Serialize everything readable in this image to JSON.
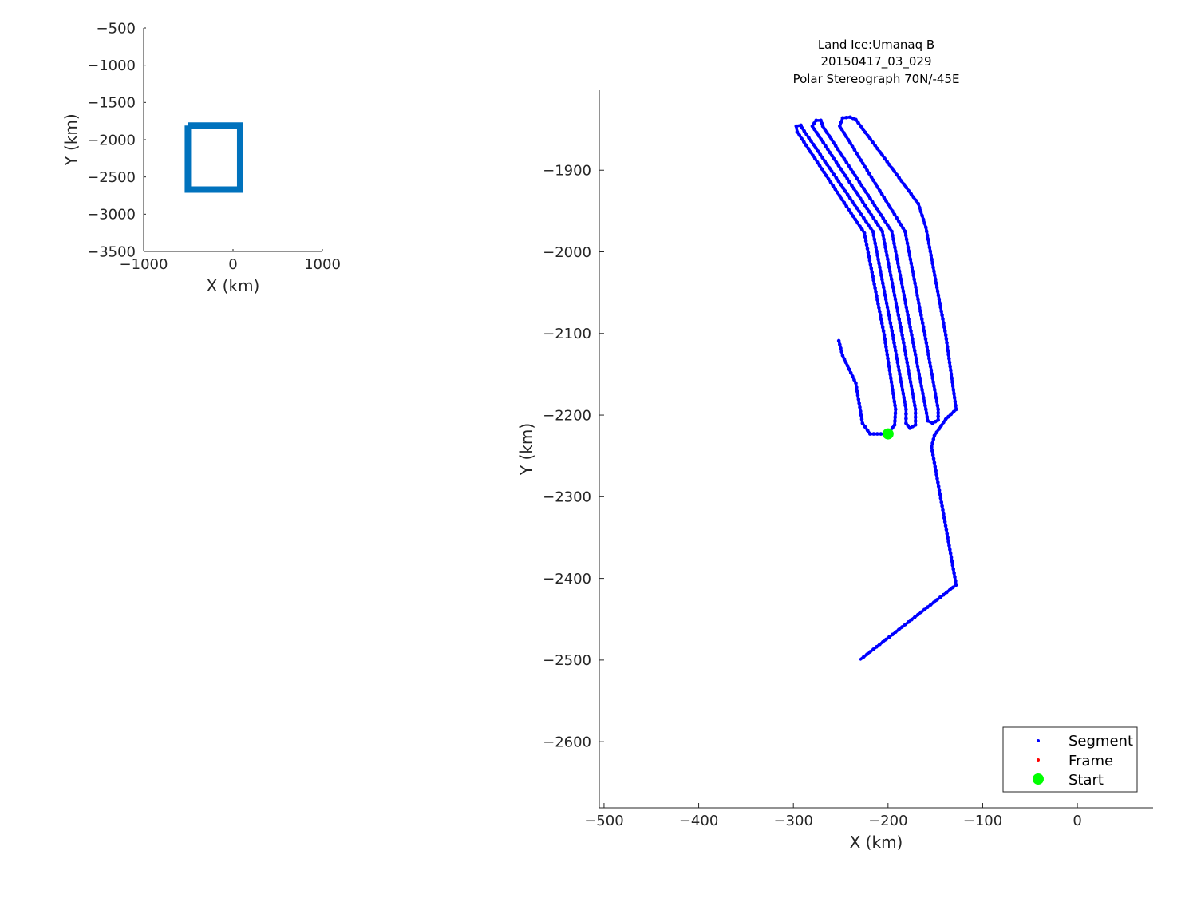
{
  "chart_data": [
    {
      "type": "line",
      "panel": "overview",
      "xlabel": "X (km)",
      "ylabel": "Y (km)",
      "xlim": [
        -1000,
        1000
      ],
      "ylim": [
        -3500,
        -500
      ],
      "xticks": [
        -1000,
        0,
        1000
      ],
      "yticks": [
        -3500,
        -3000,
        -2500,
        -2000,
        -1500,
        -1000,
        -500
      ],
      "grid": false,
      "color": "#0072BD",
      "series": [
        {
          "x": [
            -505,
            80,
            80,
            -505,
            -505
          ],
          "y": [
            -1810,
            -1810,
            -2670,
            -2670,
            -1810
          ]
        }
      ]
    },
    {
      "type": "scatter",
      "panel": "main",
      "title": [
        "Land Ice:Umanaq B",
        "20150417_03_029",
        "Polar Stereograph 70N/-45E"
      ],
      "xlabel": "X (km)",
      "ylabel": "Y (km)",
      "xlim": [
        -505,
        80
      ],
      "ylim": [
        -2681,
        -1802
      ],
      "xticks": [
        -500,
        -400,
        -300,
        -200,
        -100,
        0
      ],
      "yticks": [
        -2600,
        -2500,
        -2400,
        -2300,
        -2200,
        -2100,
        -2000,
        -1900
      ],
      "grid": false,
      "legend_position": "bottom-right",
      "series": [
        {
          "name": "Segment",
          "color": "#0000FF",
          "x": [
            -252,
            -248,
            -234,
            -227,
            -219,
            -200,
            -193,
            -192,
            -204,
            -225,
            -296,
            -297,
            -292,
            -291,
            -216,
            -195,
            -181,
            -181,
            -177,
            -171,
            -171,
            -185,
            -206,
            -280,
            -276,
            -271,
            -269,
            -196,
            -175,
            -160,
            -158,
            -153,
            -147,
            -147,
            -161,
            -182,
            -251,
            -248,
            -240,
            -234,
            -168,
            -160,
            -139,
            -128,
            -139,
            -151,
            -154,
            -128,
            -229
          ],
          "y": [
            -2109,
            -2127,
            -2161,
            -2210,
            -2223,
            -2223,
            -2212,
            -2193,
            -2102,
            -1977,
            -1853,
            -1846,
            -1845,
            -1848,
            -1975,
            -2102,
            -2193,
            -2210,
            -2216,
            -2212,
            -2193,
            -2102,
            -1975,
            -1846,
            -1839,
            -1839,
            -1846,
            -1975,
            -2102,
            -2193,
            -2207,
            -2210,
            -2206,
            -2193,
            -2102,
            -1975,
            -1846,
            -1836,
            -1835,
            -1838,
            -1941,
            -1970,
            -2102,
            -2193,
            -2205,
            -2225,
            -2239,
            -2408,
            -2499
          ]
        },
        {
          "name": "Frame",
          "color": "#FF0000",
          "x": [],
          "y": []
        },
        {
          "name": "Start",
          "color": "#00FF00",
          "x": [
            -200
          ],
          "y": [
            -2223
          ]
        }
      ]
    }
  ]
}
